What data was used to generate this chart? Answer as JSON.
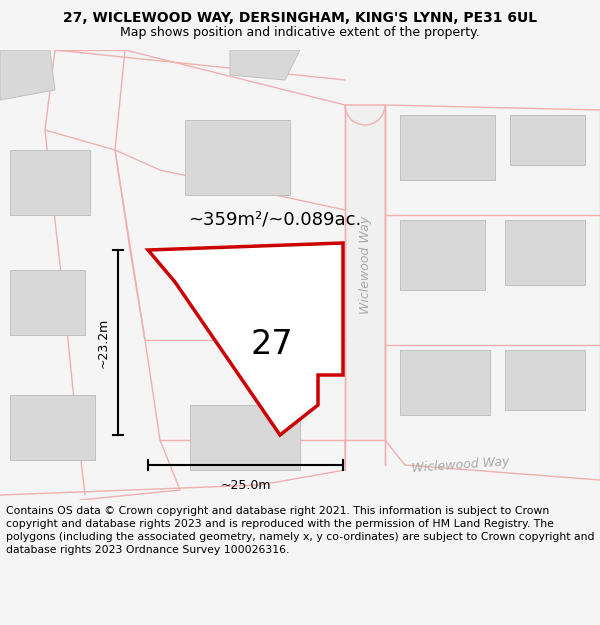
{
  "title": "27, WICLEWOOD WAY, DERSINGHAM, KING'S LYNN, PE31 6UL",
  "subtitle": "Map shows position and indicative extent of the property.",
  "footer": "Contains OS data © Crown copyright and database right 2021. This information is subject to Crown copyright and database rights 2023 and is reproduced with the permission of HM Land Registry. The polygons (including the associated geometry, namely x, y co-ordinates) are subject to Crown copyright and database rights 2023 Ordnance Survey 100026316.",
  "bg_color": "#f5f5f5",
  "map_bg": "#ffffff",
  "road_color": "#f0b0b0",
  "road_fill": "#f8f8f8",
  "building_color": "#d8d8d8",
  "building_edge": "#c0c0c0",
  "plot_color": "#cc0000",
  "plot_fill": "#ffffff",
  "area_text": "~359m²/~0.089ac.",
  "number_text": "27",
  "width_text": "~25.0m",
  "height_text": "~23.2m",
  "street_name_vert": "Wiclewood Way",
  "street_name_horiz": "Wiclewood Way",
  "title_fontsize": 10,
  "subtitle_fontsize": 9,
  "footer_fontsize": 7.8
}
